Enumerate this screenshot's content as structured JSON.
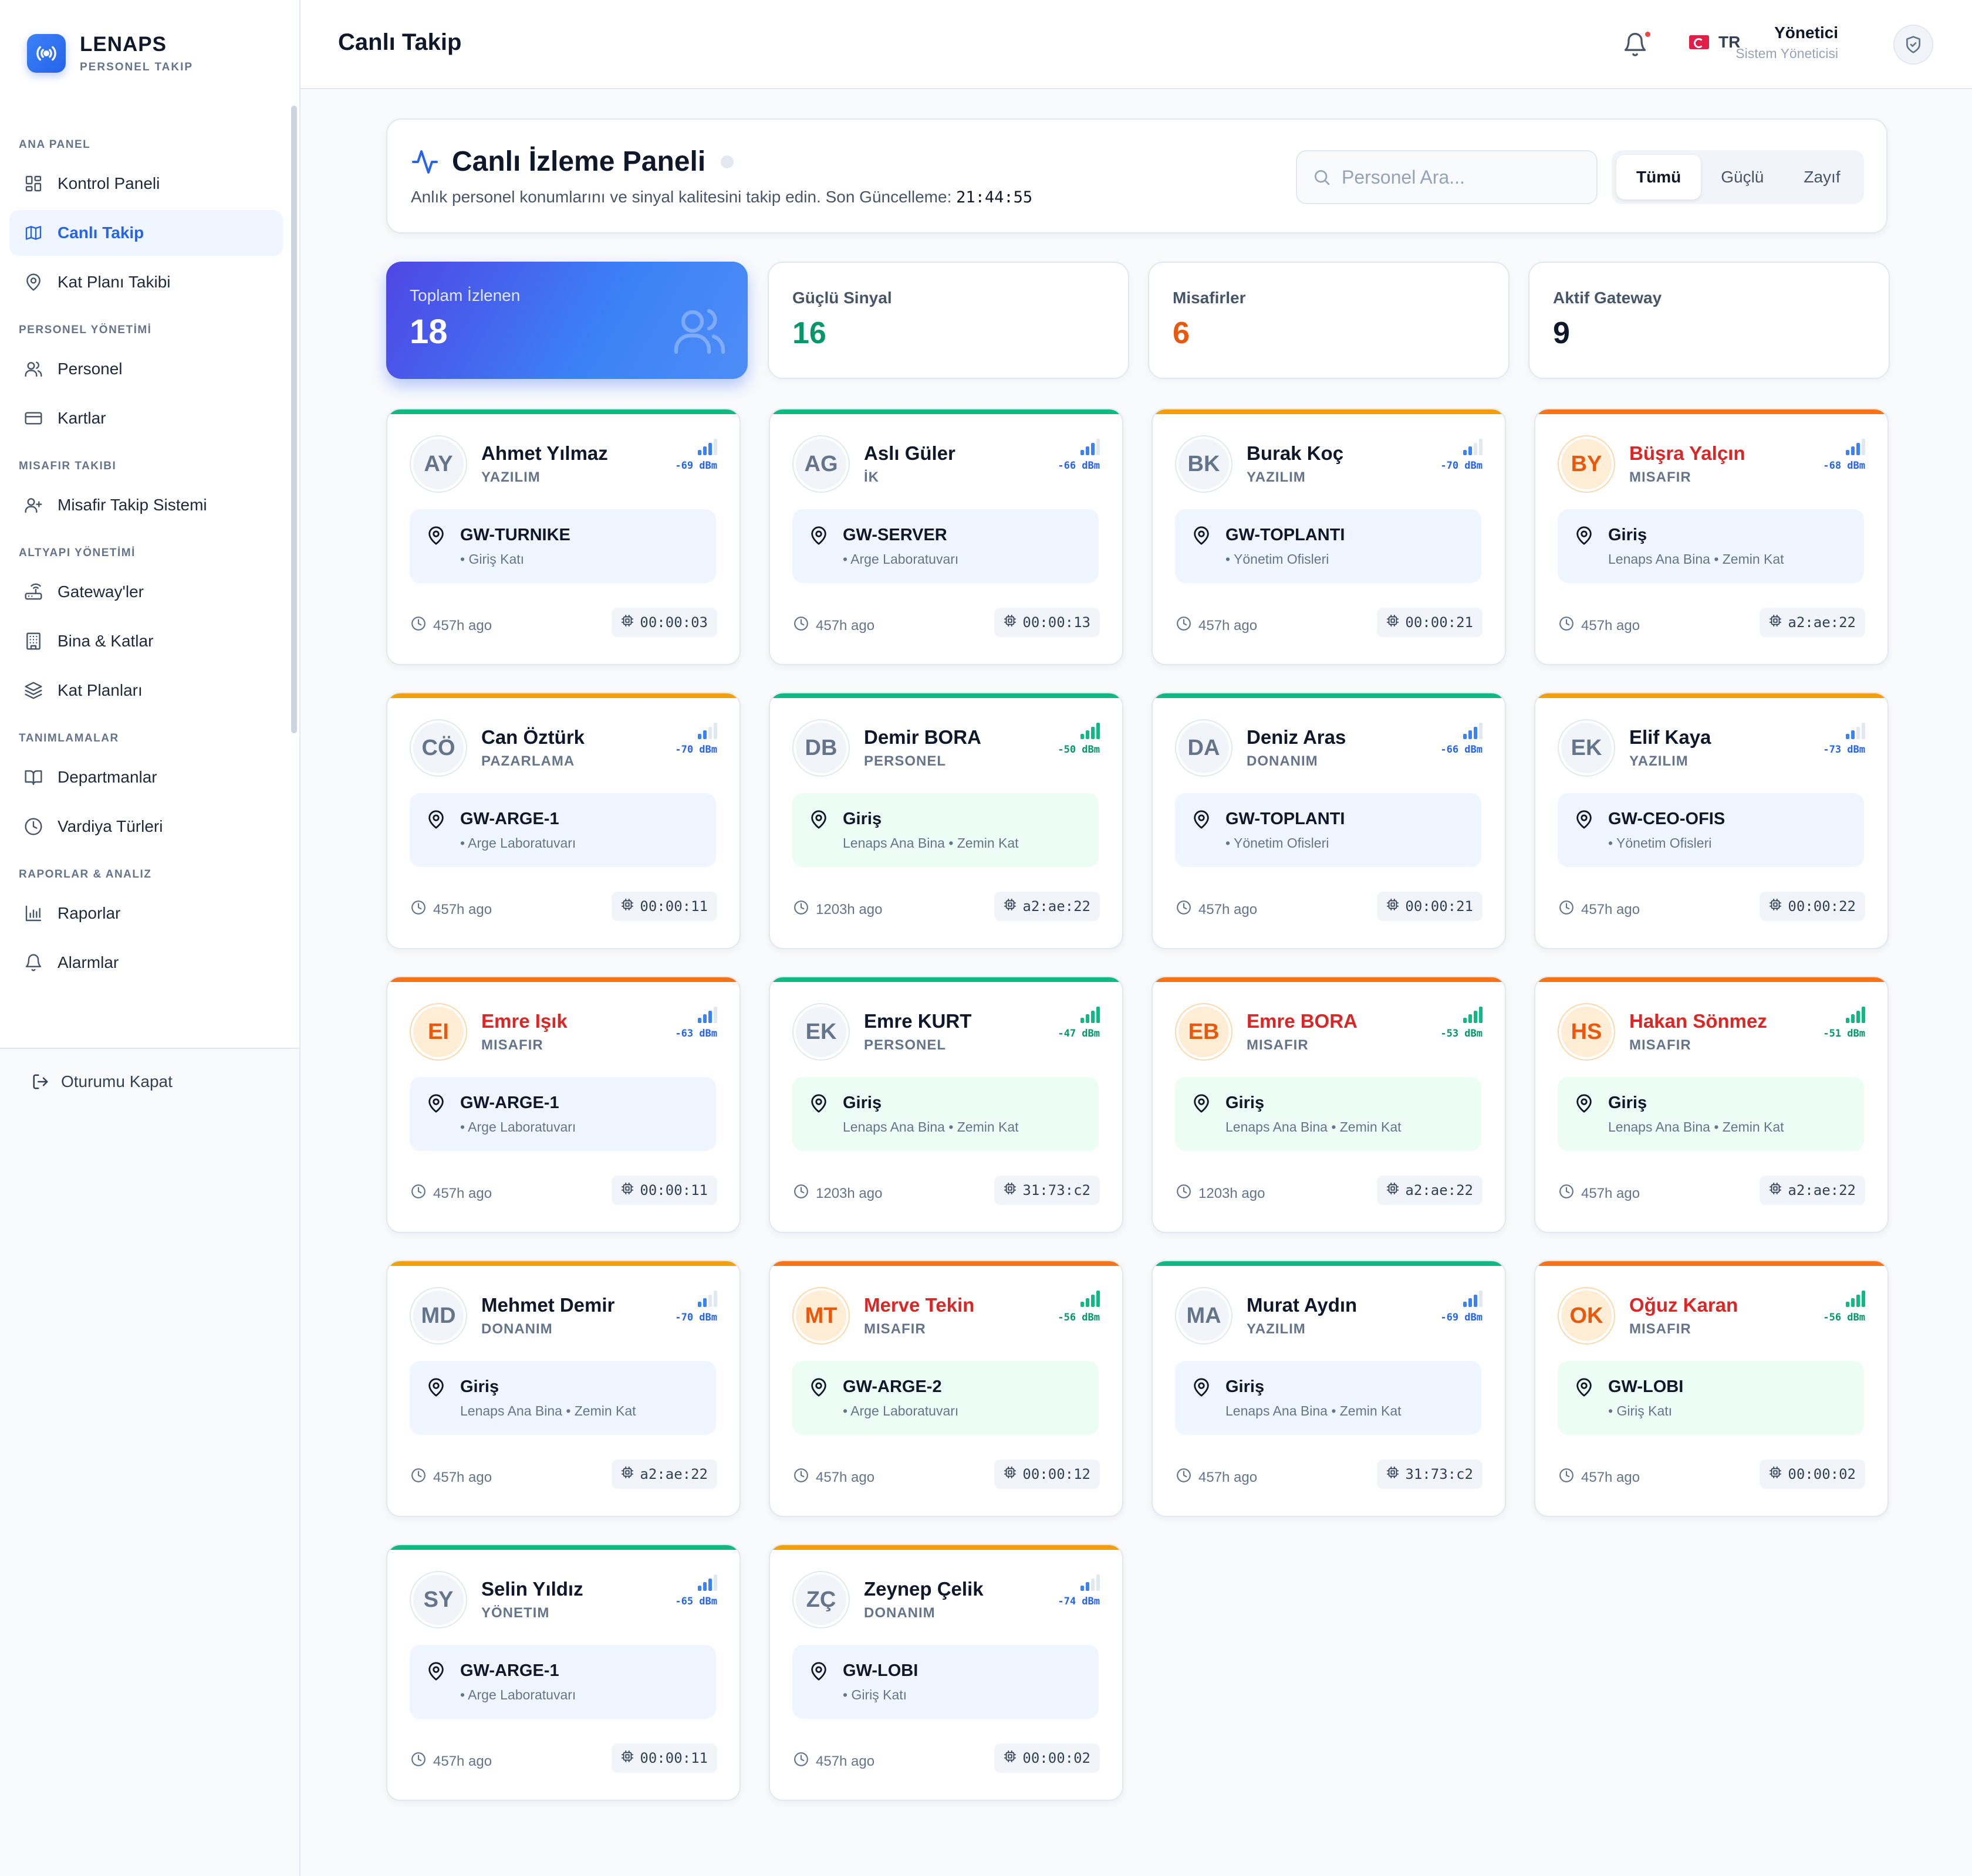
{
  "brand": {
    "title": "LENAPS",
    "subtitle": "PERSONEL TAKIP"
  },
  "sidebar": {
    "sections": [
      {
        "title": "ANA PANEL",
        "items": [
          {
            "label": "Kontrol Paneli",
            "icon": "grid-icon",
            "active": false
          },
          {
            "label": "Canlı Takip",
            "icon": "map-icon",
            "active": true
          },
          {
            "label": "Kat Planı Takibi",
            "icon": "map-pin-icon",
            "active": false
          }
        ]
      },
      {
        "title": "PERSONEL YÖNETİMİ",
        "items": [
          {
            "label": "Personel",
            "icon": "users-icon",
            "active": false
          },
          {
            "label": "Kartlar",
            "icon": "credit-card-icon",
            "active": false
          }
        ]
      },
      {
        "title": "MISAFIR TAKIBI",
        "items": [
          {
            "label": "Misafir Takip Sistemi",
            "icon": "user-plus-icon",
            "active": false
          }
        ]
      },
      {
        "title": "ALTYAPI YÖNETİMİ",
        "items": [
          {
            "label": "Gateway'ler",
            "icon": "router-icon",
            "active": false
          },
          {
            "label": "Bina & Katlar",
            "icon": "building-icon",
            "active": false
          },
          {
            "label": "Kat Planları",
            "icon": "layers-icon",
            "active": false
          }
        ]
      },
      {
        "title": "TANIMLAMALAR",
        "items": [
          {
            "label": "Departmanlar",
            "icon": "book-icon",
            "active": false
          },
          {
            "label": "Vardiya Türleri",
            "icon": "clock-icon",
            "active": false
          }
        ]
      },
      {
        "title": "RAPORLAR & ANALIZ",
        "items": [
          {
            "label": "Raporlar",
            "icon": "bar-chart-icon",
            "active": false
          },
          {
            "label": "Alarmlar",
            "icon": "bell-icon",
            "active": false
          }
        ]
      }
    ],
    "logout": "Oturumu Kapat"
  },
  "topbar": {
    "title": "Canlı Takip",
    "lang": "TR",
    "user_name": "Yönetici",
    "user_role": "Sistem Yöneticisi"
  },
  "panel": {
    "title": "Canlı İzleme Paneli",
    "desc": "Anlık personel konumlarını ve sinyal kalitesini takip edin. Son Güncelleme: ",
    "updated": "21:44:55",
    "search_placeholder": "Personel Ara...",
    "filters": [
      "Tümü",
      "Güçlü",
      "Zayıf"
    ],
    "active_filter": "Tümü"
  },
  "stats": [
    {
      "label": "Toplam İzlenen",
      "value": "18",
      "color": "#ffffff"
    },
    {
      "label": "Güçlü Sinyal",
      "value": "16",
      "color": "#059669"
    },
    {
      "label": "Misafirler",
      "value": "6",
      "color": "#ea580c"
    },
    {
      "label": "Aktif Gateway",
      "value": "9",
      "color": "#0f172a"
    }
  ],
  "colors": {
    "strong": "#10b981",
    "medium": "#f59e0b",
    "guest": "#f97316",
    "blue": "#2563eb",
    "green": "#059669"
  },
  "people": [
    {
      "initials": "AY",
      "name": "Ahmet Yılmaz",
      "dept": "YAZILIM",
      "dbm": "-69 dBm",
      "bars": 3,
      "sig": "blue",
      "bar": "#10b981",
      "guest": false,
      "loc": "GW-TURNIKE",
      "sub": "• Giriş Katı",
      "zone": "blue",
      "time": "457h ago",
      "mac": "00:00:03"
    },
    {
      "initials": "AG",
      "name": "Aslı Güler",
      "dept": "İK",
      "dbm": "-66 dBm",
      "bars": 3,
      "sig": "blue",
      "bar": "#10b981",
      "guest": false,
      "loc": "GW-SERVER",
      "sub": "• Arge Laboratuvarı",
      "zone": "blue",
      "time": "457h ago",
      "mac": "00:00:13"
    },
    {
      "initials": "BK",
      "name": "Burak Koç",
      "dept": "YAZILIM",
      "dbm": "-70 dBm",
      "bars": 2,
      "sig": "blue",
      "bar": "#f59e0b",
      "guest": false,
      "loc": "GW-TOPLANTI",
      "sub": "• Yönetim Ofisleri",
      "zone": "blue",
      "time": "457h ago",
      "mac": "00:00:21"
    },
    {
      "initials": "BY",
      "name": "Büşra Yalçın",
      "dept": "MISAFIR",
      "dbm": "-68 dBm",
      "bars": 3,
      "sig": "blue",
      "bar": "#f97316",
      "guest": true,
      "loc": "Giriş",
      "sub": "Lenaps Ana Bina • Zemin Kat",
      "zone": "blue",
      "time": "457h ago",
      "mac": "a2:ae:22"
    },
    {
      "initials": "CÖ",
      "name": "Can Öztürk",
      "dept": "PAZARLAMA",
      "dbm": "-70 dBm",
      "bars": 2,
      "sig": "blue",
      "bar": "#f59e0b",
      "guest": false,
      "loc": "GW-ARGE-1",
      "sub": "• Arge Laboratuvarı",
      "zone": "blue",
      "time": "457h ago",
      "mac": "00:00:11"
    },
    {
      "initials": "DB",
      "name": "Demir BORA",
      "dept": "PERSONEL",
      "dbm": "-50 dBm",
      "bars": 4,
      "sig": "green",
      "bar": "#10b981",
      "guest": false,
      "loc": "Giriş",
      "sub": "Lenaps Ana Bina • Zemin Kat",
      "zone": "green",
      "time": "1203h ago",
      "mac": "a2:ae:22"
    },
    {
      "initials": "DA",
      "name": "Deniz Aras",
      "dept": "DONANIM",
      "dbm": "-66 dBm",
      "bars": 3,
      "sig": "blue",
      "bar": "#10b981",
      "guest": false,
      "loc": "GW-TOPLANTI",
      "sub": "• Yönetim Ofisleri",
      "zone": "blue",
      "time": "457h ago",
      "mac": "00:00:21"
    },
    {
      "initials": "EK",
      "name": "Elif Kaya",
      "dept": "YAZILIM",
      "dbm": "-73 dBm",
      "bars": 2,
      "sig": "blue",
      "bar": "#f59e0b",
      "guest": false,
      "loc": "GW-CEO-OFIS",
      "sub": "• Yönetim Ofisleri",
      "zone": "blue",
      "time": "457h ago",
      "mac": "00:00:22"
    },
    {
      "initials": "EI",
      "name": "Emre Işık",
      "dept": "MISAFIR",
      "dbm": "-63 dBm",
      "bars": 3,
      "sig": "blue",
      "bar": "#f97316",
      "guest": true,
      "loc": "GW-ARGE-1",
      "sub": "• Arge Laboratuvarı",
      "zone": "blue",
      "time": "457h ago",
      "mac": "00:00:11"
    },
    {
      "initials": "EK",
      "name": "Emre KURT",
      "dept": "PERSONEL",
      "dbm": "-47 dBm",
      "bars": 4,
      "sig": "green",
      "bar": "#10b981",
      "guest": false,
      "loc": "Giriş",
      "sub": "Lenaps Ana Bina • Zemin Kat",
      "zone": "green",
      "time": "1203h ago",
      "mac": "31:73:c2"
    },
    {
      "initials": "EB",
      "name": "Emre BORA",
      "dept": "MISAFIR",
      "dbm": "-53 dBm",
      "bars": 4,
      "sig": "green",
      "bar": "#f97316",
      "guest": true,
      "loc": "Giriş",
      "sub": "Lenaps Ana Bina • Zemin Kat",
      "zone": "green",
      "time": "1203h ago",
      "mac": "a2:ae:22"
    },
    {
      "initials": "HS",
      "name": "Hakan Sönmez",
      "dept": "MISAFIR",
      "dbm": "-51 dBm",
      "bars": 4,
      "sig": "green",
      "bar": "#f97316",
      "guest": true,
      "loc": "Giriş",
      "sub": "Lenaps Ana Bina • Zemin Kat",
      "zone": "green",
      "time": "457h ago",
      "mac": "a2:ae:22"
    },
    {
      "initials": "MD",
      "name": "Mehmet Demir",
      "dept": "DONANIM",
      "dbm": "-70 dBm",
      "bars": 2,
      "sig": "blue",
      "bar": "#f59e0b",
      "guest": false,
      "loc": "Giriş",
      "sub": "Lenaps Ana Bina • Zemin Kat",
      "zone": "blue",
      "time": "457h ago",
      "mac": "a2:ae:22"
    },
    {
      "initials": "MT",
      "name": "Merve Tekin",
      "dept": "MISAFIR",
      "dbm": "-56 dBm",
      "bars": 4,
      "sig": "green",
      "bar": "#f97316",
      "guest": true,
      "loc": "GW-ARGE-2",
      "sub": "• Arge Laboratuvarı",
      "zone": "green",
      "time": "457h ago",
      "mac": "00:00:12"
    },
    {
      "initials": "MA",
      "name": "Murat Aydın",
      "dept": "YAZILIM",
      "dbm": "-69 dBm",
      "bars": 3,
      "sig": "blue",
      "bar": "#10b981",
      "guest": false,
      "loc": "Giriş",
      "sub": "Lenaps Ana Bina • Zemin Kat",
      "zone": "blue",
      "time": "457h ago",
      "mac": "31:73:c2"
    },
    {
      "initials": "OK",
      "name": "Oğuz Karan",
      "dept": "MISAFIR",
      "dbm": "-56 dBm",
      "bars": 4,
      "sig": "green",
      "bar": "#f97316",
      "guest": true,
      "loc": "GW-LOBI",
      "sub": "• Giriş Katı",
      "zone": "green",
      "time": "457h ago",
      "mac": "00:00:02"
    },
    {
      "initials": "SY",
      "name": "Selin Yıldız",
      "dept": "YÖNETIM",
      "dbm": "-65 dBm",
      "bars": 3,
      "sig": "blue",
      "bar": "#10b981",
      "guest": false,
      "loc": "GW-ARGE-1",
      "sub": "• Arge Laboratuvarı",
      "zone": "blue",
      "time": "457h ago",
      "mac": "00:00:11"
    },
    {
      "initials": "ZÇ",
      "name": "Zeynep Çelik",
      "dept": "DONANIM",
      "dbm": "-74 dBm",
      "bars": 2,
      "sig": "blue",
      "bar": "#f59e0b",
      "guest": false,
      "loc": "GW-LOBI",
      "sub": "• Giriş Katı",
      "zone": "blue",
      "time": "457h ago",
      "mac": "00:00:02"
    }
  ]
}
